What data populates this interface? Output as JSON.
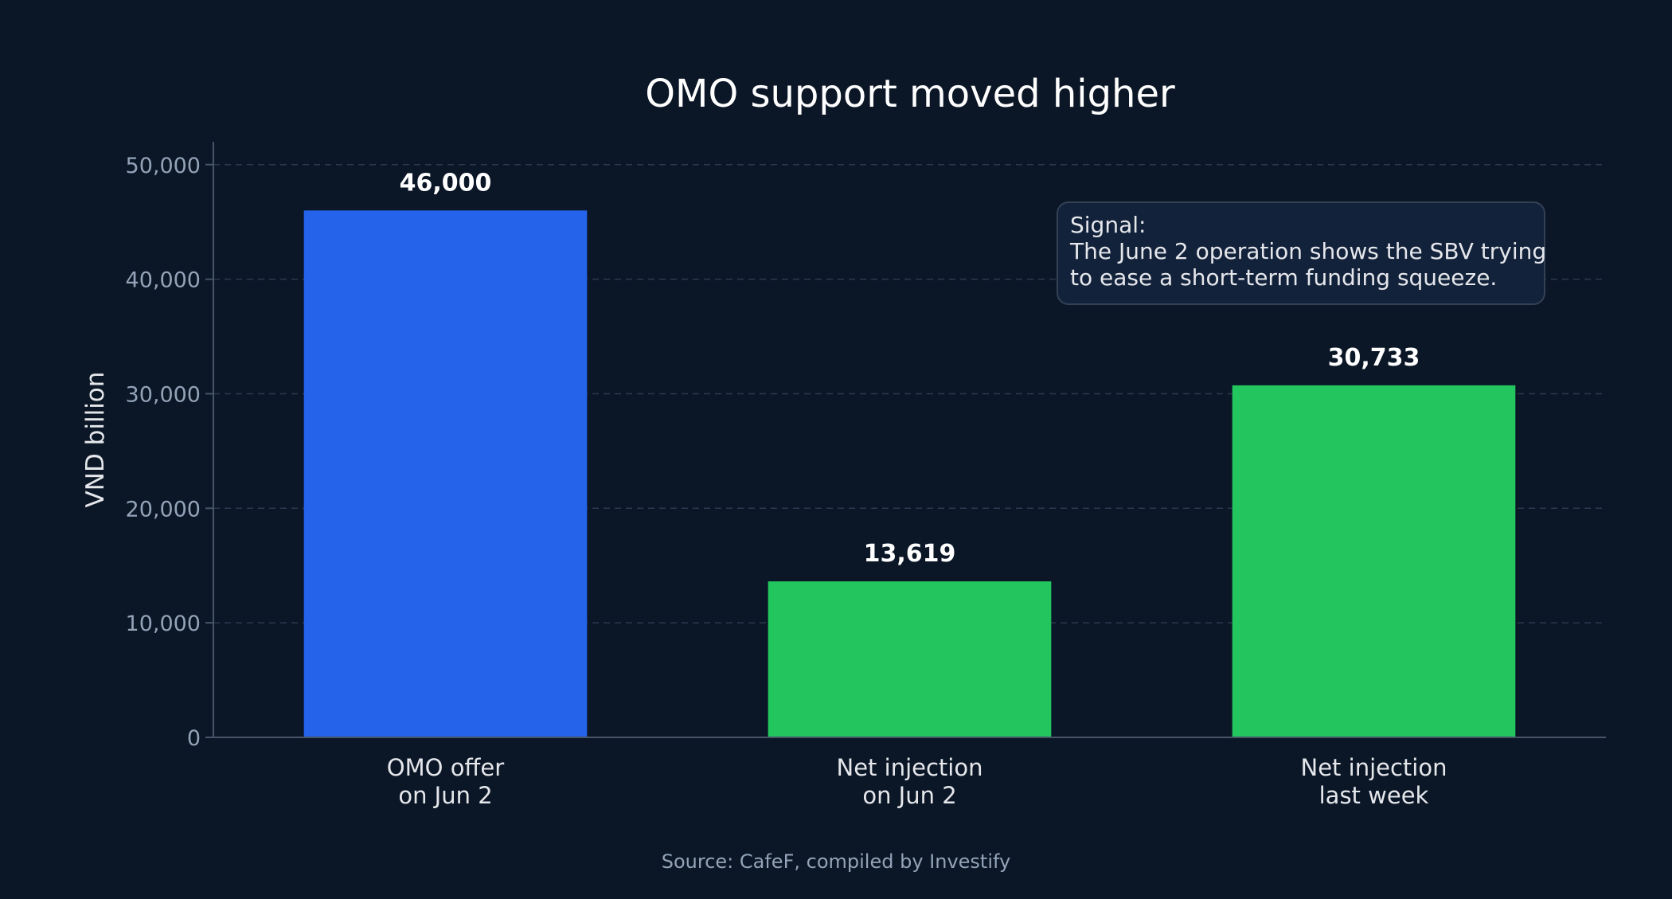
{
  "chart_data": {
    "type": "bar",
    "title": "OMO support moved higher",
    "ylabel": "VND billion",
    "xlabel": "",
    "ylim": [
      0,
      52000
    ],
    "yticks": [
      0,
      10000,
      20000,
      30000,
      40000,
      50000
    ],
    "ytick_labels": [
      "0",
      "10,000",
      "20,000",
      "30,000",
      "40,000",
      "50,000"
    ],
    "grid": true,
    "categories": [
      [
        "OMO offer",
        "on Jun 2"
      ],
      [
        "Net injection",
        "on Jun 2"
      ],
      [
        "Net injection",
        "last week"
      ]
    ],
    "values": [
      46000,
      13619,
      30733
    ],
    "value_labels": [
      "46,000",
      "13,619",
      "30,733"
    ],
    "bar_colors": [
      "#2563eb",
      "#22c55e",
      "#22c55e"
    ],
    "annotation": {
      "lines": [
        "Signal:",
        "The June 2 operation shows the SBV trying",
        "to ease a short-term funding squeeze."
      ]
    },
    "source": "Source: CafeF, compiled by Investify"
  }
}
